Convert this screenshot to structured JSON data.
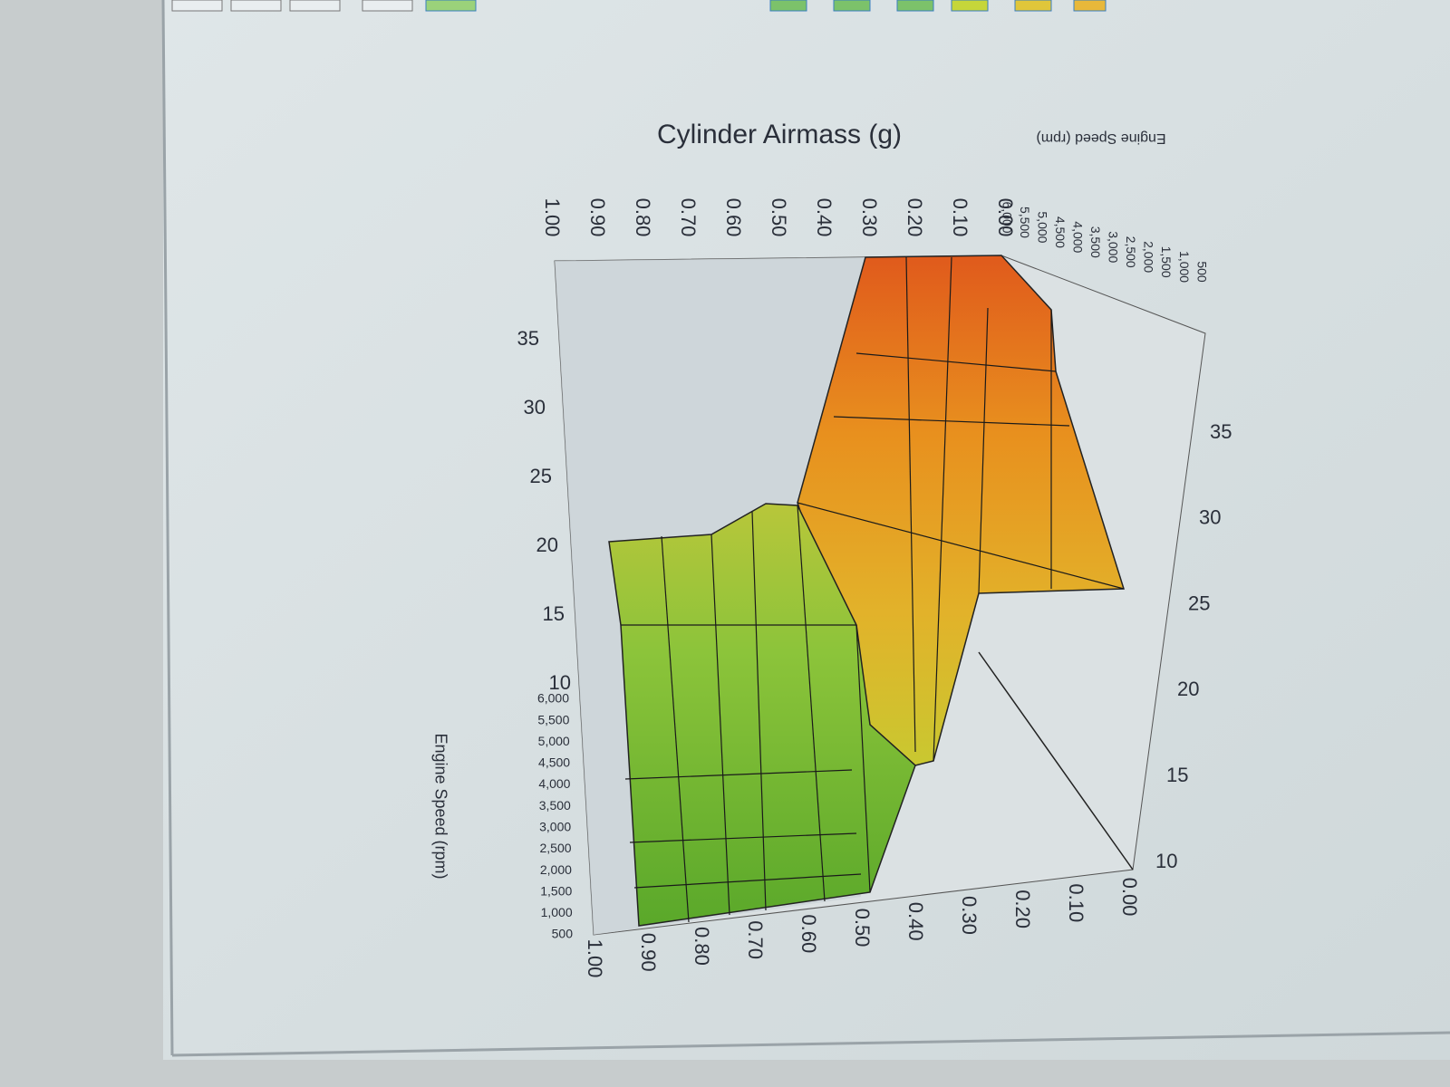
{
  "chart": {
    "title": "Cylinder Airmass (g)",
    "left_axis_label": "Engine Speed (rpm)",
    "top_axis_label": "Engine Speed (rpm)",
    "top_airmass_ticks": [
      "1.00",
      "0.90",
      "0.80",
      "0.70",
      "0.60",
      "0.50",
      "0.40",
      "0.30",
      "0.20",
      "0.10",
      "0.00"
    ],
    "bottom_airmass_ticks": [
      "1.00",
      "0.90",
      "0.80",
      "0.70",
      "0.60",
      "0.50",
      "0.40",
      "0.30",
      "0.20",
      "0.10",
      "0.00"
    ],
    "left_value_ticks": [
      "35",
      "30",
      "25",
      "20",
      "15",
      "10"
    ],
    "right_value_ticks": [
      "35",
      "30",
      "25",
      "20",
      "15",
      "10"
    ],
    "left_rpm_ticks": [
      "6,000",
      "5,500",
      "5,000",
      "4,500",
      "4,000",
      "3,500",
      "3,000",
      "2,500",
      "2,000",
      "1,500",
      "1,000",
      "500"
    ],
    "top_rpm_ticks": [
      "6,000",
      "5,500",
      "5,000",
      "4,500",
      "4,000",
      "3,500",
      "3,000",
      "2,500",
      "2,000",
      "1,500",
      "1,000",
      "500"
    ]
  }
}
